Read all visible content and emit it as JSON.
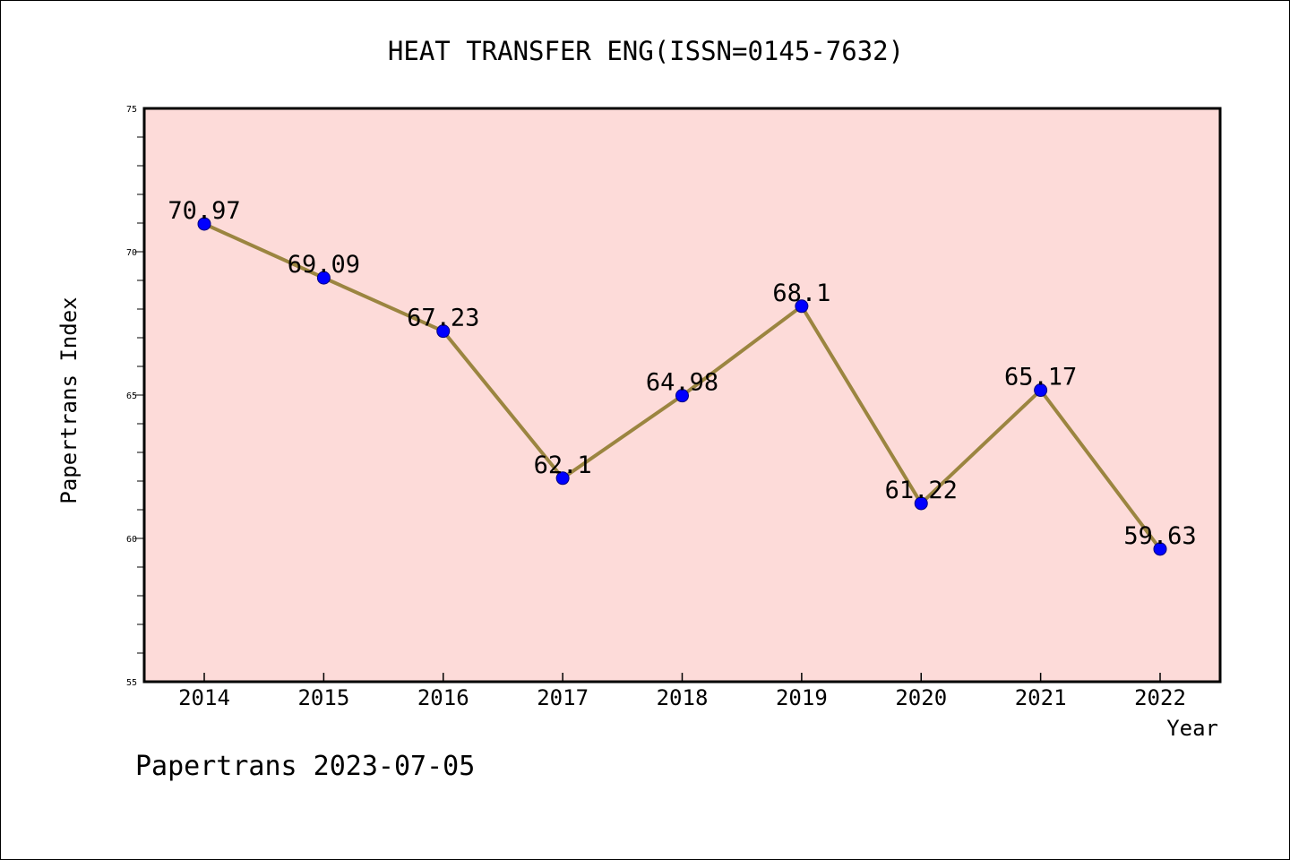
{
  "chart_data": {
    "type": "line",
    "title": "HEAT TRANSFER ENG(ISSN=0145-7632)",
    "xlabel": "Year",
    "ylabel": "Papertrans Index",
    "categories": [
      "2014",
      "2015",
      "2016",
      "2017",
      "2018",
      "2019",
      "2020",
      "2021",
      "2022"
    ],
    "series": [
      {
        "values": [
          70.97,
          69.09,
          67.23,
          62.1,
          64.98,
          68.1,
          61.22,
          65.17,
          59.63
        ],
        "labels": [
          "70.97",
          "69.09",
          "67.23",
          "62.1",
          "64.98",
          "68.1",
          "61.22",
          "65.17",
          "59.63"
        ]
      }
    ],
    "ylim": [
      55,
      75
    ],
    "yticks": [
      "55",
      "60",
      "65",
      "70",
      "75"
    ],
    "grid": false,
    "colors": {
      "plot_background": "#fddbd9",
      "line": "#9b8540",
      "marker": "#0000ff",
      "marker_edge": "#000080"
    }
  },
  "footer": "Papertrans 2023-07-05"
}
